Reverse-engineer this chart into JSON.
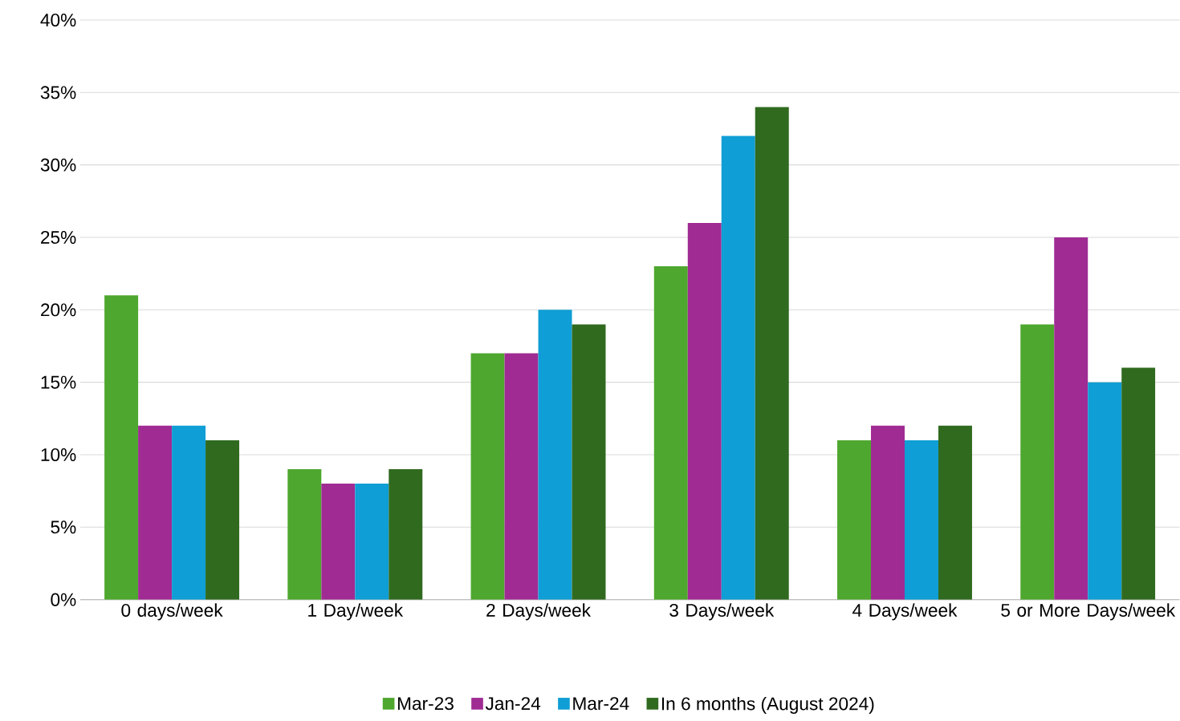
{
  "chart_data": {
    "type": "bar",
    "categories": [
      "0 days/week",
      "1 Day/week",
      "2 Days/week",
      "3 Days/week",
      "4 Days/week",
      "5 or More Days/week"
    ],
    "series": [
      {
        "name": "Mar-23",
        "color": "#4ea72e",
        "values": [
          21,
          9,
          17,
          23,
          11,
          19
        ]
      },
      {
        "name": "Jan-24",
        "color": "#a02b93",
        "values": [
          12,
          8,
          17,
          26,
          12,
          25
        ]
      },
      {
        "name": "Mar-24",
        "color": "#0f9ed5",
        "values": [
          12,
          8,
          20,
          32,
          11,
          15
        ]
      },
      {
        "name": "In 6 months (August 2024)",
        "color": "#306a1f",
        "values": [
          11,
          9,
          19,
          34,
          12,
          16
        ]
      }
    ],
    "ylim": [
      0,
      40
    ],
    "yticks": [
      {
        "value": 0,
        "label": "0%"
      },
      {
        "value": 5,
        "label": "5%"
      },
      {
        "value": 10,
        "label": "10%"
      },
      {
        "value": 15,
        "label": "15%"
      },
      {
        "value": 20,
        "label": "20%"
      },
      {
        "value": 25,
        "label": "25%"
      },
      {
        "value": 30,
        "label": "30%"
      },
      {
        "value": 35,
        "label": "35%"
      },
      {
        "value": 40,
        "label": "40%"
      }
    ],
    "grid": "y",
    "legend": "bottom"
  }
}
